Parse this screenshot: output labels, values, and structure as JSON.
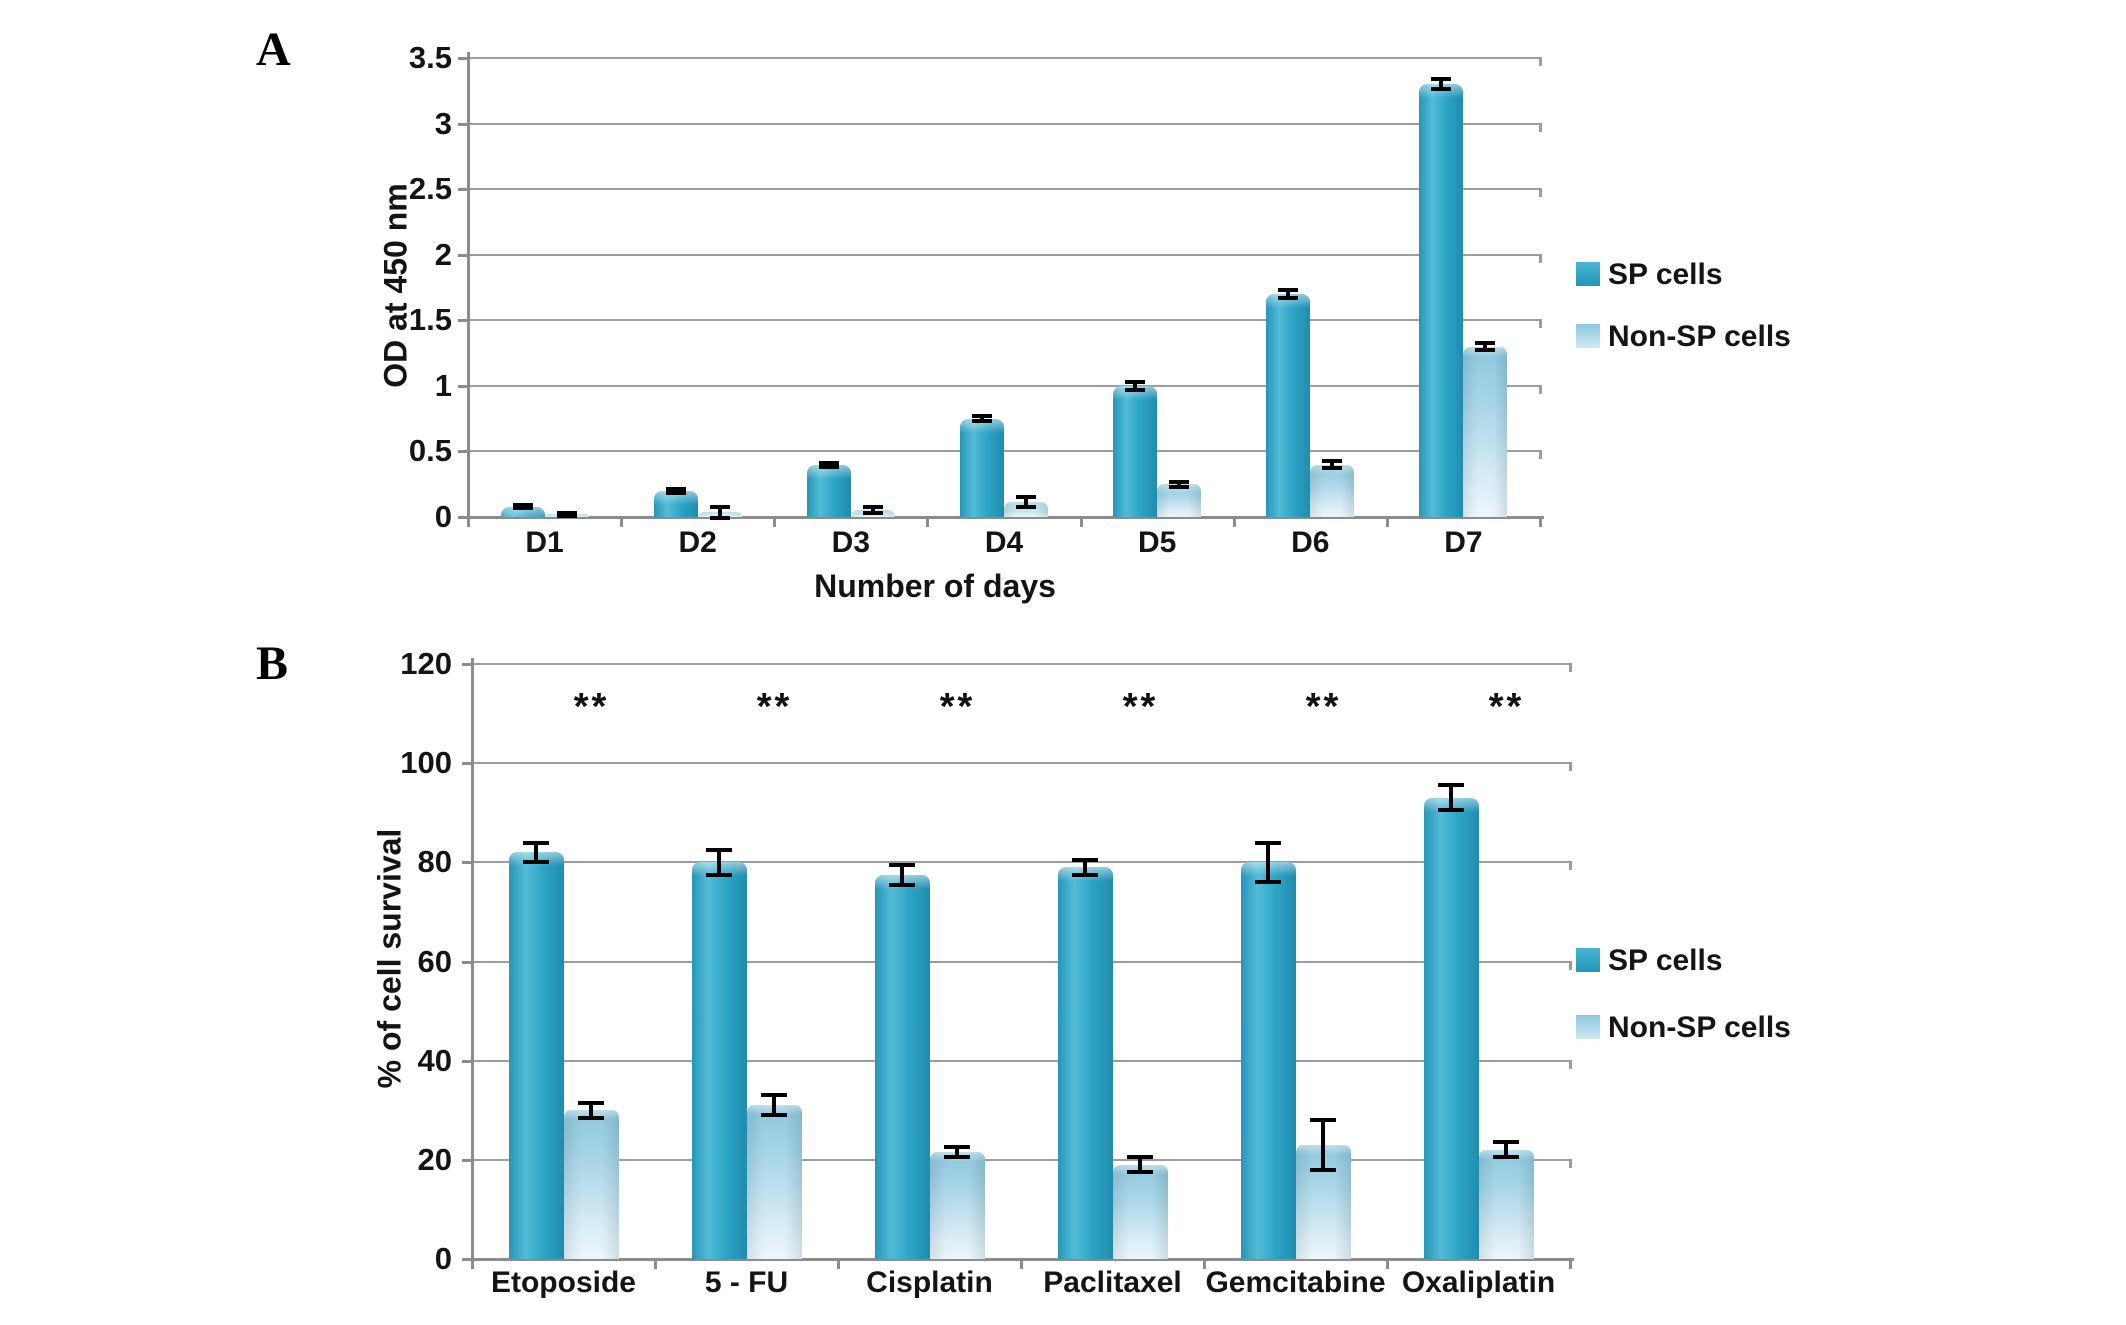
{
  "figure": {
    "background": "#ffffff",
    "panels": [
      "A",
      "B"
    ]
  },
  "colors": {
    "sp_series": "#2ea4c5",
    "sp_highlight": "#52bcd6",
    "sp_edge": "#1f8cae",
    "nonsp_top": "#8cc7dc",
    "nonsp_bottom": "#ecf6fb",
    "gridline": "#9c9c9c",
    "axis": "#8c8c8c",
    "error_bar": "#000000",
    "text": "#141414"
  },
  "chart_data": [
    {
      "id": "A",
      "type": "bar",
      "panel_label": "A",
      "title": "",
      "xlabel": "Number of days",
      "ylabel": "OD at 450 nm",
      "categories": [
        "D1",
        "D2",
        "D3",
        "D4",
        "D5",
        "D6",
        "D7"
      ],
      "series": [
        {
          "name": "SP cells",
          "values": [
            0.08,
            0.2,
            0.4,
            0.75,
            1.0,
            1.7,
            3.3
          ],
          "errors": [
            0.015,
            0.015,
            0.015,
            0.02,
            0.03,
            0.03,
            0.04
          ]
        },
        {
          "name": "Non-SP cells",
          "values": [
            0.02,
            0.035,
            0.055,
            0.115,
            0.25,
            0.4,
            1.3
          ],
          "errors": [
            0.01,
            0.04,
            0.025,
            0.04,
            0.02,
            0.03,
            0.03
          ]
        }
      ],
      "ylim": [
        0,
        3.5
      ],
      "yticks": [
        0,
        0.5,
        1,
        1.5,
        2,
        2.5,
        3,
        3.5
      ],
      "ytick_labels": [
        "0",
        "0.5",
        "1",
        "1.5",
        "2",
        "2.5",
        "3",
        "3.5"
      ],
      "grid": true,
      "legend_position": "right",
      "legend_labels": [
        "SP cells",
        "Non-SP cells"
      ],
      "significance": []
    },
    {
      "id": "B",
      "type": "bar",
      "panel_label": "B",
      "title": "",
      "xlabel": "",
      "ylabel": "% of cell survival",
      "categories": [
        "Etoposide",
        "5 - FU",
        "Cisplatin",
        "Paclitaxel",
        "Gemcitabine",
        "Oxaliplatin"
      ],
      "series": [
        {
          "name": "SP cells",
          "values": [
            82,
            80,
            77.5,
            79,
            80,
            93
          ],
          "errors": [
            2,
            2.5,
            2,
            1.5,
            4,
            2.5
          ]
        },
        {
          "name": "Non-SP cells",
          "values": [
            30,
            31,
            21.5,
            19,
            23,
            22
          ],
          "errors": [
            1.5,
            2,
            1,
            1.5,
            5,
            1.5
          ]
        }
      ],
      "ylim": [
        0,
        120
      ],
      "yticks": [
        0,
        20,
        40,
        60,
        80,
        100,
        120
      ],
      "ytick_labels": [
        "0",
        "20",
        "40",
        "60",
        "80",
        "100",
        "120"
      ],
      "grid": true,
      "legend_position": "right",
      "legend_labels": [
        "SP cells",
        "Non-SP cells"
      ],
      "significance": [
        "**",
        "**",
        "**",
        "**",
        "**",
        "**"
      ]
    }
  ]
}
